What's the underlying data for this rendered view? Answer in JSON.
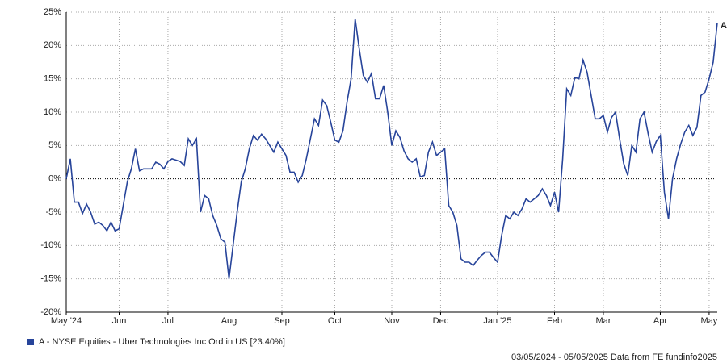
{
  "chart_data": {
    "type": "line",
    "categories": [
      "May '24",
      null,
      null,
      null,
      null,
      null,
      null,
      null,
      null,
      null,
      null,
      null,
      null,
      "Jun",
      null,
      null,
      null,
      null,
      null,
      null,
      null,
      null,
      null,
      null,
      null,
      "Jul",
      null,
      null,
      null,
      null,
      null,
      null,
      null,
      null,
      null,
      null,
      null,
      null,
      null,
      null,
      "Aug",
      null,
      null,
      null,
      null,
      null,
      null,
      null,
      null,
      null,
      null,
      null,
      null,
      "Sep",
      null,
      null,
      null,
      null,
      null,
      null,
      null,
      null,
      null,
      null,
      null,
      null,
      "Oct",
      null,
      null,
      null,
      null,
      null,
      null,
      null,
      null,
      null,
      null,
      null,
      null,
      null,
      "Nov",
      null,
      null,
      null,
      null,
      null,
      null,
      null,
      null,
      null,
      null,
      null,
      "Dec",
      null,
      null,
      null,
      null,
      null,
      null,
      null,
      null,
      null,
      null,
      null,
      null,
      null,
      "Jan '25",
      null,
      null,
      null,
      null,
      null,
      null,
      null,
      null,
      null,
      null,
      null,
      null,
      null,
      "Feb",
      null,
      null,
      null,
      null,
      null,
      null,
      null,
      null,
      null,
      null,
      null,
      "Mar",
      null,
      null,
      null,
      null,
      null,
      null,
      null,
      null,
      null,
      null,
      null,
      null,
      null,
      "Apr",
      null,
      null,
      null,
      null,
      null,
      null,
      null,
      null,
      null,
      null,
      null,
      "May",
      null,
      null
    ],
    "series": [
      {
        "name": "A - NYSE Equities - Uber Technologies Inc Ord in US [23.40%]",
        "label": "A",
        "color": "#27449a",
        "values": [
          0,
          3,
          -3.5,
          -3.5,
          -5.2,
          -3.8,
          -5,
          -6.8,
          -6.5,
          -7,
          -7.8,
          -6.5,
          -7.8,
          -7.5,
          -4,
          -0.5,
          1.5,
          4.5,
          1.2,
          1.5,
          1.5,
          1.5,
          2.5,
          2.2,
          1.5,
          2.6,
          3,
          2.8,
          2.6,
          2,
          6,
          5,
          6,
          -5,
          -2.5,
          -3,
          -5.5,
          -7,
          -9,
          -9.5,
          -15,
          -10,
          -5,
          -0.5,
          1.5,
          4.5,
          6.5,
          5.8,
          6.7,
          6,
          5,
          4,
          5.5,
          4.5,
          3.5,
          1,
          1,
          -0.5,
          0.5,
          3,
          6,
          9,
          8,
          11.8,
          11,
          8.5,
          5.8,
          5.5,
          7.2,
          11.5,
          15,
          24,
          19.5,
          15.5,
          14.5,
          15.8,
          12,
          12,
          14,
          10,
          5,
          7.2,
          6.2,
          4.2,
          3,
          2.5,
          3,
          0.3,
          0.5,
          4,
          5.5,
          3.5,
          4,
          4.5,
          -4,
          -5,
          -7,
          -12,
          -12.5,
          -12.5,
          -13,
          -12.2,
          -11.5,
          -11,
          -11,
          -11.8,
          -12.5,
          -8.5,
          -5.5,
          -6,
          -5,
          -5.5,
          -4.5,
          -3,
          -3.5,
          -3,
          -2.5,
          -1.5,
          -2.5,
          -4,
          -2,
          -5,
          3,
          13.5,
          12.5,
          15.2,
          15,
          17.8,
          16,
          12.5,
          9,
          9,
          9.5,
          7,
          9.2,
          10,
          6,
          2.3,
          0.5,
          5,
          4,
          9,
          10,
          6.8,
          4,
          5.6,
          6.5,
          -2,
          -6,
          0,
          3,
          5.2,
          7,
          8,
          6.5,
          7.7,
          12.5,
          13,
          15,
          17.5,
          23.4
        ]
      }
    ],
    "ylim": [
      -20,
      25
    ],
    "yticks": [
      {
        "value": -20,
        "label": "-20%"
      },
      {
        "value": -15,
        "label": "-15%"
      },
      {
        "value": -10,
        "label": "-10%"
      },
      {
        "value": -5,
        "label": "-5%"
      },
      {
        "value": 0,
        "label": "0%"
      },
      {
        "value": 5,
        "label": "5%"
      },
      {
        "value": 10,
        "label": "10%"
      },
      {
        "value": 15,
        "label": "15%"
      },
      {
        "value": 20,
        "label": "20%"
      },
      {
        "value": 25,
        "label": "25%"
      }
    ],
    "grid": true,
    "footer": "03/05/2024 - 05/05/2025 Data from FE fundinfo2025"
  }
}
